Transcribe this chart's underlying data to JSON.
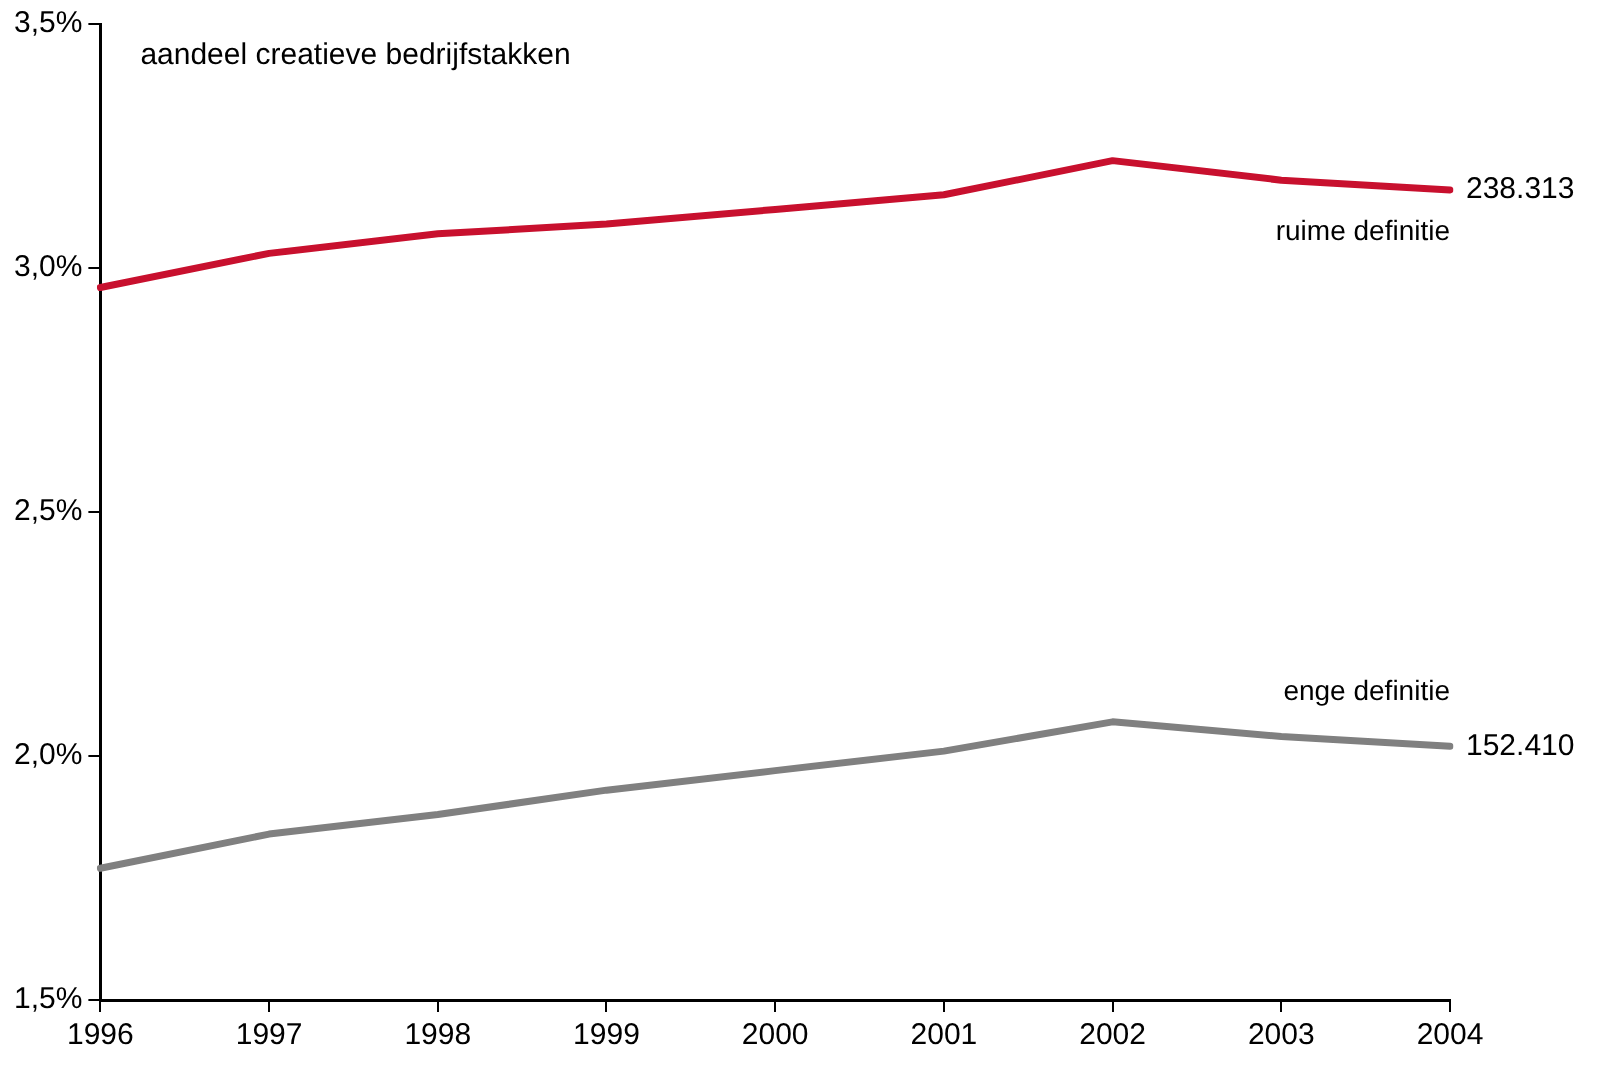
{
  "chart_data": {
    "type": "line",
    "ylabel": "aandeel creatieve bedrijfstakken",
    "categories": [
      "1996",
      "1997",
      "1998",
      "1999",
      "2000",
      "2001",
      "2002",
      "2003",
      "2004"
    ],
    "series": [
      {
        "name": "ruime definitie",
        "color": "#c8102e",
        "values": [
          2.96,
          3.03,
          3.07,
          3.09,
          3.12,
          3.15,
          3.22,
          3.18,
          3.16
        ]
      },
      {
        "name": "enge definitie",
        "color": "#808080",
        "values": [
          1.77,
          1.84,
          1.88,
          1.93,
          1.97,
          2.01,
          2.07,
          2.04,
          2.02
        ]
      }
    ],
    "ylim": [
      1.5,
      3.5
    ],
    "yticks": [
      {
        "value": 1.5,
        "label": "1,5%"
      },
      {
        "value": 2.0,
        "label": "2,0%"
      },
      {
        "value": 2.5,
        "label": "2,5%"
      },
      {
        "value": 3.0,
        "label": "3,0%"
      },
      {
        "value": 3.5,
        "label": "3,5%"
      }
    ],
    "annotations": [
      {
        "text": "238.313",
        "x": "2004",
        "y": 3.16
      },
      {
        "text": "152.410",
        "x": "2004",
        "y": 2.02
      }
    ],
    "grid": false,
    "legend": false,
    "marker": "none",
    "line_style": "solid"
  }
}
